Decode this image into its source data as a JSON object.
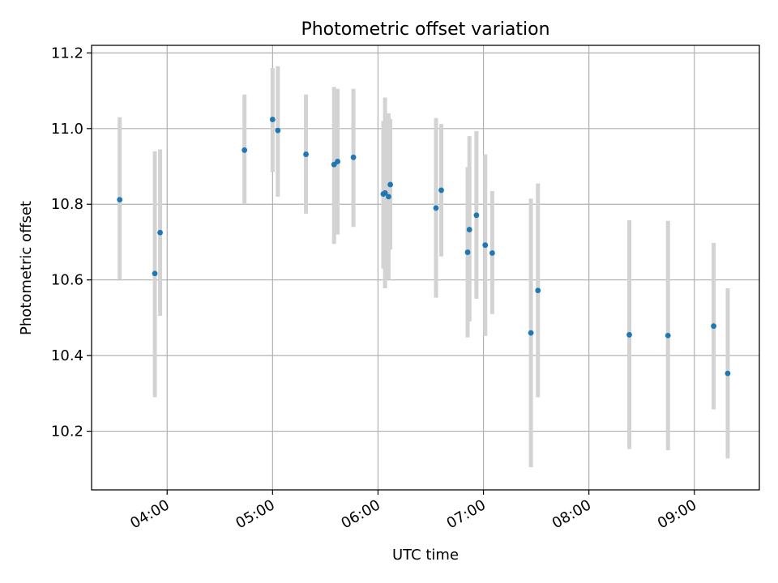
{
  "chart_data": {
    "type": "scatter",
    "title": "Photometric offset variation",
    "xlabel": "UTC time",
    "ylabel": "Photometric offset",
    "x_ticks": [
      "04:00",
      "05:00",
      "06:00",
      "07:00",
      "08:00",
      "09:00"
    ],
    "y_ticks": [
      "10.2",
      "10.4",
      "10.6",
      "10.8",
      "11.0",
      "11.2"
    ],
    "xlim": [
      "03:17",
      "09:37"
    ],
    "ylim": [
      10.045,
      11.22
    ],
    "grid": true,
    "colors": {
      "point": "#1f77b4",
      "errorbar": "#d3d3d3",
      "grid": "#b0b0b0"
    },
    "points": [
      {
        "t": "03:33",
        "y": 10.812,
        "lo": 10.6,
        "hi": 11.03
      },
      {
        "t": "03:53",
        "y": 10.617,
        "lo": 10.29,
        "hi": 10.94
      },
      {
        "t": "03:56",
        "y": 10.725,
        "lo": 10.505,
        "hi": 10.945
      },
      {
        "t": "04:44",
        "y": 10.943,
        "lo": 10.8,
        "hi": 11.09
      },
      {
        "t": "05:00",
        "y": 11.024,
        "lo": 10.885,
        "hi": 11.16
      },
      {
        "t": "05:03",
        "y": 10.995,
        "lo": 10.82,
        "hi": 11.165
      },
      {
        "t": "05:19",
        "y": 10.932,
        "lo": 10.775,
        "hi": 11.09
      },
      {
        "t": "05:35",
        "y": 10.905,
        "lo": 10.695,
        "hi": 11.11
      },
      {
        "t": "05:37",
        "y": 10.913,
        "lo": 10.72,
        "hi": 11.105
      },
      {
        "t": "05:46",
        "y": 10.924,
        "lo": 10.74,
        "hi": 11.105
      },
      {
        "t": "06:03",
        "y": 10.827,
        "lo": 10.63,
        "hi": 11.02
      },
      {
        "t": "06:04",
        "y": 10.83,
        "lo": 10.578,
        "hi": 11.082
      },
      {
        "t": "06:06",
        "y": 10.82,
        "lo": 10.6,
        "hi": 11.04
      },
      {
        "t": "06:07",
        "y": 10.852,
        "lo": 10.68,
        "hi": 11.025
      },
      {
        "t": "06:33",
        "y": 10.79,
        "lo": 10.553,
        "hi": 11.028
      },
      {
        "t": "06:36",
        "y": 10.837,
        "lo": 10.662,
        "hi": 11.012
      },
      {
        "t": "06:51",
        "y": 10.673,
        "lo": 10.448,
        "hi": 10.898
      },
      {
        "t": "06:52",
        "y": 10.733,
        "lo": 10.49,
        "hi": 10.98
      },
      {
        "t": "06:56",
        "y": 10.771,
        "lo": 10.55,
        "hi": 10.993
      },
      {
        "t": "07:01",
        "y": 10.692,
        "lo": 10.452,
        "hi": 10.932
      },
      {
        "t": "07:05",
        "y": 10.671,
        "lo": 10.51,
        "hi": 10.835
      },
      {
        "t": "07:27",
        "y": 10.46,
        "lo": 10.105,
        "hi": 10.815
      },
      {
        "t": "07:31",
        "y": 10.572,
        "lo": 10.29,
        "hi": 10.855
      },
      {
        "t": "08:23",
        "y": 10.455,
        "lo": 10.153,
        "hi": 10.758
      },
      {
        "t": "08:45",
        "y": 10.453,
        "lo": 10.15,
        "hi": 10.756
      },
      {
        "t": "09:11",
        "y": 10.478,
        "lo": 10.258,
        "hi": 10.698
      },
      {
        "t": "09:19",
        "y": 10.353,
        "lo": 10.128,
        "hi": 10.578
      }
    ]
  }
}
